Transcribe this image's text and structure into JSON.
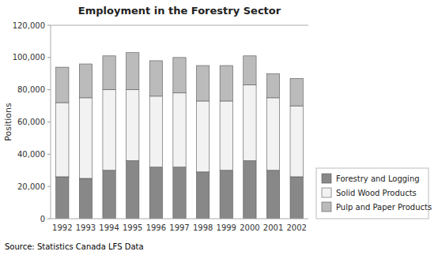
{
  "chart_data": {
    "type": "bar",
    "stacked": true,
    "title": "Employment in the Forestry Sector",
    "y_label": "Positions",
    "source": "Source: Statistics Canada LFS Data",
    "categories": [
      "1992",
      "1993",
      "1994",
      "1995",
      "1996",
      "1997",
      "1998",
      "1999",
      "2000",
      "2001",
      "2002"
    ],
    "series": [
      {
        "name": "Forestry and Logging",
        "color": "#888888",
        "values": [
          26000,
          25000,
          30000,
          36000,
          32000,
          32000,
          29000,
          30000,
          36000,
          30000,
          26000
        ]
      },
      {
        "name": "Solid Wood Products",
        "color": "#f2f2f2",
        "values": [
          46000,
          50000,
          50000,
          44000,
          44000,
          46000,
          44000,
          43000,
          47000,
          45000,
          44000
        ]
      },
      {
        "name": "Pulp and Paper Products",
        "color": "#bbbbbb",
        "values": [
          22000,
          21000,
          21000,
          23000,
          22000,
          22000,
          22000,
          22000,
          18000,
          15000,
          17000
        ]
      }
    ],
    "ylim": [
      0,
      120000
    ],
    "yticks": [
      0,
      {
        "value": 20000,
        "label": "20,000"
      },
      {
        "value": 40000,
        "label": "40,000"
      },
      {
        "value": 60000,
        "label": "60,000"
      },
      {
        "value": 80000,
        "label": "80,000"
      },
      {
        "value": 100000,
        "label": "100,000"
      },
      {
        "value": 120000,
        "label": "120,000"
      }
    ],
    "grid": false,
    "legend": "lower right"
  }
}
